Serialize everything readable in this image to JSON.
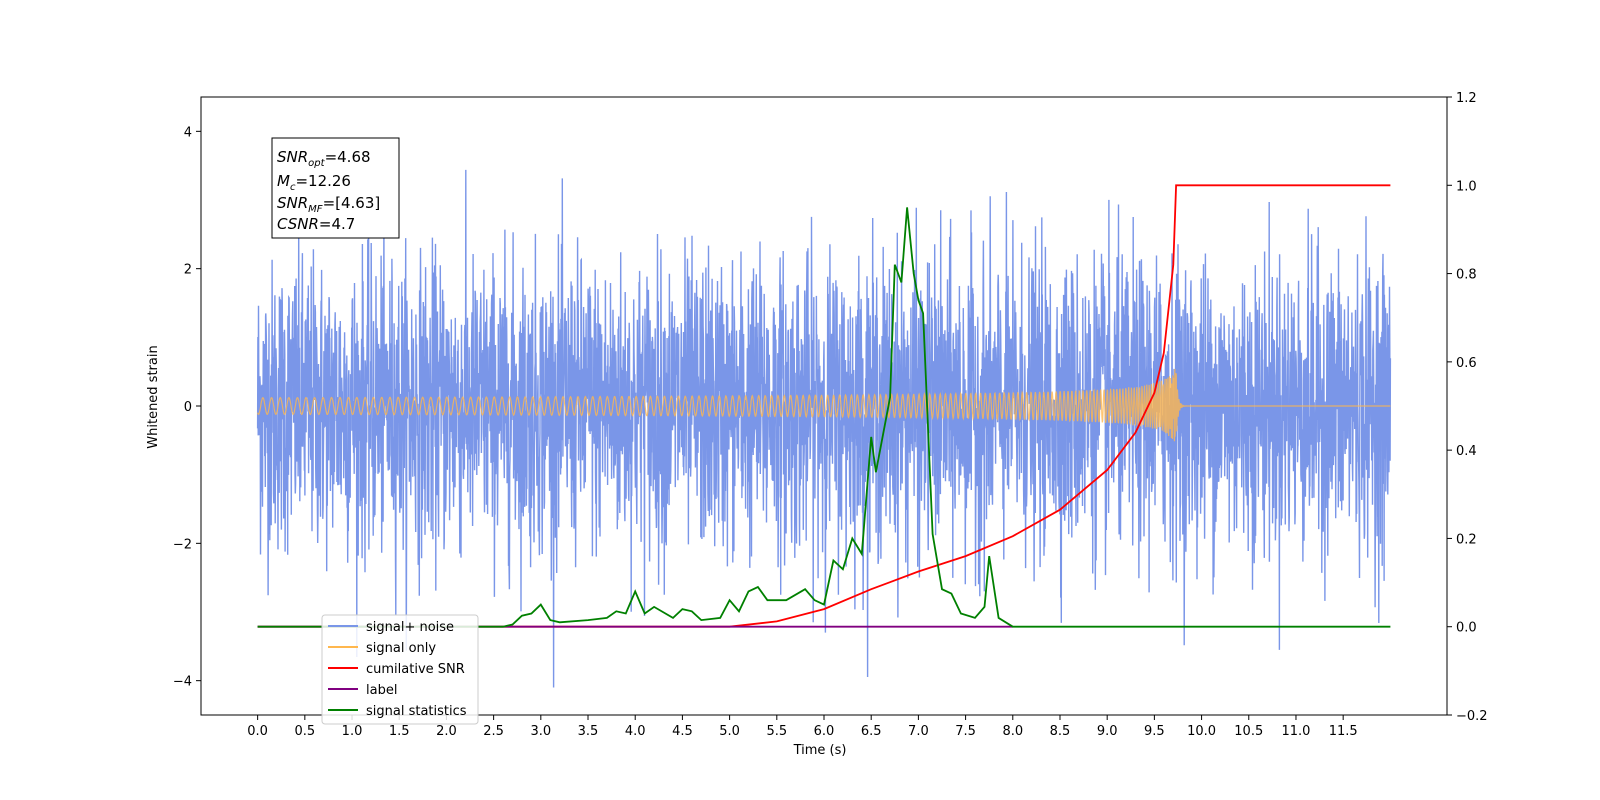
{
  "chart_data": {
    "type": "line",
    "xlabel": "Time (s)",
    "ylabel_left": "Whitened strain",
    "ylabel_right": "",
    "xlim": [
      -0.6,
      12.6
    ],
    "ylim_left": [
      -4.5,
      4.5
    ],
    "ylim_right": [
      -0.2,
      1.2
    ],
    "x_ticks": [
      "0.0",
      "0.5",
      "1.0",
      "1.5",
      "2.0",
      "2.5",
      "3.0",
      "3.5",
      "4.0",
      "4.5",
      "5.0",
      "5.5",
      "6.0",
      "6.5",
      "7.0",
      "7.5",
      "8.0",
      "8.5",
      "9.0",
      "9.5",
      "10.0",
      "10.5",
      "11.0",
      "11.5"
    ],
    "y_ticks_left": [
      "4",
      "2",
      "0",
      "−2",
      "−4"
    ],
    "y_ticks_right": [
      "1.2",
      "1.0",
      "0.8",
      "0.6",
      "0.4",
      "0.2",
      "0.0",
      "−0.2"
    ],
    "grid": false,
    "legend_position": "lower-left",
    "annotation": {
      "snr_opt_value": "=4.68",
      "mc_value": "=12.26",
      "snr_mf_value": "=[4.63]",
      "csnr_value": "=4.7"
    },
    "series": [
      {
        "name": "signal+ noise",
        "color": "#7a96e8",
        "axis": "left",
        "description_values": "whitened noise with amplitude about ±2 to ±3, peaks near ±3.5 to 4.1, spanning t=0 to 12",
        "t_range": [
          0,
          12
        ]
      },
      {
        "name": "signal only",
        "color": "#ffb74d",
        "axis": "left",
        "chirp": {
          "start": 0,
          "merger": 9.73,
          "end": 12,
          "peak_amplitude": 0.72
        }
      },
      {
        "name": "cumilative SNR",
        "color": "#ff0000",
        "axis": "right",
        "points": [
          [
            0,
            0
          ],
          [
            5.0,
            0.0
          ],
          [
            5.5,
            0.012
          ],
          [
            6.0,
            0.04
          ],
          [
            6.5,
            0.085
          ],
          [
            7.0,
            0.125
          ],
          [
            7.5,
            0.16
          ],
          [
            8.0,
            0.205
          ],
          [
            8.5,
            0.265
          ],
          [
            9.0,
            0.355
          ],
          [
            9.3,
            0.44
          ],
          [
            9.5,
            0.53
          ],
          [
            9.6,
            0.62
          ],
          [
            9.7,
            0.82
          ],
          [
            9.73,
            1.0
          ],
          [
            12,
            1.0
          ]
        ]
      },
      {
        "name": "label",
        "color": "#800080",
        "axis": "right",
        "points": [
          [
            0,
            0
          ],
          [
            8.0,
            0
          ]
        ]
      },
      {
        "name": "signal statistics",
        "color": "#008000",
        "axis": "right",
        "points": [
          [
            0,
            0
          ],
          [
            2.6,
            0.0
          ],
          [
            2.7,
            0.005
          ],
          [
            2.8,
            0.025
          ],
          [
            2.9,
            0.03
          ],
          [
            3.0,
            0.05
          ],
          [
            3.1,
            0.015
          ],
          [
            3.2,
            0.01
          ],
          [
            3.5,
            0.015
          ],
          [
            3.7,
            0.02
          ],
          [
            3.8,
            0.035
          ],
          [
            3.9,
            0.03
          ],
          [
            4.0,
            0.08
          ],
          [
            4.1,
            0.03
          ],
          [
            4.2,
            0.045
          ],
          [
            4.4,
            0.02
          ],
          [
            4.5,
            0.04
          ],
          [
            4.6,
            0.035
          ],
          [
            4.7,
            0.015
          ],
          [
            4.9,
            0.02
          ],
          [
            5.0,
            0.06
          ],
          [
            5.1,
            0.035
          ],
          [
            5.2,
            0.08
          ],
          [
            5.3,
            0.09
          ],
          [
            5.4,
            0.06
          ],
          [
            5.6,
            0.06
          ],
          [
            5.8,
            0.085
          ],
          [
            5.9,
            0.06
          ],
          [
            6.0,
            0.05
          ],
          [
            6.1,
            0.15
          ],
          [
            6.2,
            0.13
          ],
          [
            6.3,
            0.2
          ],
          [
            6.4,
            0.165
          ],
          [
            6.5,
            0.43
          ],
          [
            6.55,
            0.35
          ],
          [
            6.7,
            0.52
          ],
          [
            6.75,
            0.82
          ],
          [
            6.82,
            0.78
          ],
          [
            6.88,
            0.95
          ],
          [
            6.95,
            0.8
          ],
          [
            7.0,
            0.74
          ],
          [
            7.05,
            0.71
          ],
          [
            7.15,
            0.21
          ],
          [
            7.25,
            0.085
          ],
          [
            7.35,
            0.075
          ],
          [
            7.45,
            0.03
          ],
          [
            7.6,
            0.02
          ],
          [
            7.7,
            0.045
          ],
          [
            7.75,
            0.16
          ],
          [
            7.85,
            0.02
          ],
          [
            8.0,
            0.0
          ],
          [
            12,
            0.0
          ]
        ]
      }
    ]
  }
}
